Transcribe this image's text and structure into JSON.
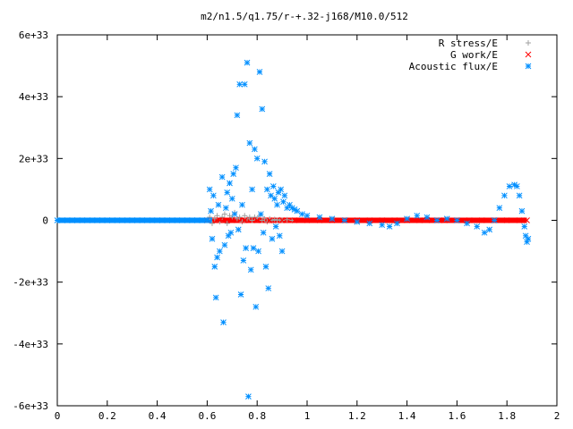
{
  "chart_data": {
    "type": "scatter",
    "title": "m2/n1.5/q1.75/r-+.32-j168/M10.0/512",
    "xlabel": "",
    "ylabel": "",
    "xlim": [
      0,
      2
    ],
    "ylim": [
      -6e+33,
      6e+33
    ],
    "x_ticks": [
      "0",
      "0.2",
      "0.4",
      "0.6",
      "0.8",
      "1",
      "1.2",
      "1.4",
      "1.6",
      "1.8",
      "2"
    ],
    "y_ticks": [
      "-6e+33",
      "-4e+33",
      "-2e+33",
      "0",
      "2e+33",
      "4e+33",
      "6e+33"
    ],
    "grid": false,
    "legend_position": "top-right",
    "series": [
      {
        "name": "R stress/E",
        "marker": "+",
        "color": "#a0a0a0",
        "x": [
          0.6,
          0.61,
          0.62,
          0.63,
          0.64,
          0.65,
          0.66,
          0.67,
          0.68,
          0.69,
          0.7,
          0.71,
          0.72,
          0.73,
          0.74,
          0.75,
          0.76,
          0.77,
          0.78,
          0.79,
          0.8,
          0.81,
          0.82,
          0.83,
          0.84,
          0.85,
          0.86,
          0.87,
          0.88,
          0.89,
          0.9,
          0.92,
          0.94
        ],
        "y": [
          0,
          1e+32,
          -1e+32,
          5e+31,
          1.5e+32,
          -5e+31,
          1e+32,
          2e+32,
          -1e+32,
          1.5e+32,
          1e+32,
          2.5e+32,
          5e+31,
          1e+32,
          -5e+31,
          1.5e+32,
          5e+31,
          1e+32,
          0,
          1e+32,
          5e+31,
          1.5e+32,
          0,
          5e+31,
          -5e+31,
          5e+31,
          0,
          3e+31,
          0,
          2e+31,
          0,
          2e+31,
          0
        ]
      },
      {
        "name": "G work/E",
        "marker": "x",
        "color": "#ff0000",
        "x": [
          0.6,
          0.65,
          0.7,
          0.75,
          0.8,
          0.85,
          0.9,
          0.95,
          1.0,
          1.05,
          1.1,
          1.15,
          1.2,
          1.25,
          1.3,
          1.35,
          1.4,
          1.45,
          1.5,
          1.55,
          1.6,
          1.65,
          1.7,
          1.75,
          1.8,
          1.85,
          1.88
        ],
        "y": [
          0,
          0,
          0,
          0,
          0,
          0,
          0,
          0,
          0,
          0,
          0,
          0,
          0,
          0,
          0,
          0,
          0,
          0,
          0,
          0,
          0,
          0,
          0,
          0,
          0,
          0,
          0
        ]
      },
      {
        "name": "Acoustic flux/E",
        "marker": "*",
        "color": "#008fff",
        "x": [
          0.0,
          0.02,
          0.04,
          0.06,
          0.08,
          0.1,
          0.12,
          0.14,
          0.16,
          0.18,
          0.2,
          0.22,
          0.24,
          0.26,
          0.28,
          0.3,
          0.32,
          0.34,
          0.36,
          0.38,
          0.4,
          0.42,
          0.44,
          0.46,
          0.48,
          0.5,
          0.52,
          0.54,
          0.56,
          0.58,
          0.6,
          0.61,
          0.615,
          0.62,
          0.625,
          0.63,
          0.635,
          0.64,
          0.645,
          0.65,
          0.66,
          0.665,
          0.67,
          0.675,
          0.68,
          0.685,
          0.69,
          0.695,
          0.7,
          0.705,
          0.71,
          0.715,
          0.72,
          0.725,
          0.73,
          0.735,
          0.74,
          0.745,
          0.75,
          0.755,
          0.76,
          0.765,
          0.77,
          0.775,
          0.78,
          0.785,
          0.79,
          0.795,
          0.8,
          0.805,
          0.81,
          0.815,
          0.82,
          0.825,
          0.83,
          0.835,
          0.84,
          0.845,
          0.85,
          0.855,
          0.86,
          0.865,
          0.87,
          0.875,
          0.88,
          0.885,
          0.89,
          0.895,
          0.9,
          0.905,
          0.91,
          0.92,
          0.93,
          0.94,
          0.95,
          0.96,
          0.98,
          1.0,
          1.05,
          1.1,
          1.15,
          1.2,
          1.25,
          1.3,
          1.33,
          1.36,
          1.4,
          1.44,
          1.48,
          1.52,
          1.56,
          1.6,
          1.64,
          1.68,
          1.71,
          1.73,
          1.75,
          1.77,
          1.79,
          1.81,
          1.83,
          1.84,
          1.85,
          1.86,
          1.87,
          1.875,
          1.88,
          1.885
        ],
        "y": [
          0,
          0,
          0,
          0,
          0,
          0,
          0,
          0,
          0,
          0,
          0,
          0,
          0,
          0,
          0,
          0,
          0,
          0,
          0,
          0,
          0,
          0,
          0,
          0,
          0,
          0,
          0,
          0,
          0,
          0,
          0,
          1e+33,
          3e+32,
          -6e+32,
          8e+32,
          -1.5e+33,
          -2.5e+33,
          -1.2e+33,
          5e+32,
          -1e+33,
          1.4e+33,
          -3.3e+33,
          -8e+32,
          4e+32,
          9e+32,
          -5e+32,
          1.2e+33,
          -4e+32,
          7e+32,
          1.5e+33,
          2e+32,
          1.7e+33,
          3.4e+33,
          -3e+32,
          4.4e+33,
          -2.4e+33,
          5e+32,
          -1.3e+33,
          4.4e+33,
          -9e+32,
          5.1e+33,
          -5.7e+33,
          2.5e+33,
          -1.6e+33,
          1e+33,
          -9e+32,
          2.3e+33,
          -2.8e+33,
          2e+33,
          -1e+33,
          4.8e+33,
          2e+32,
          3.6e+33,
          -4e+32,
          1.9e+33,
          -1.5e+33,
          1e+33,
          -2.2e+33,
          1.5e+33,
          8e+32,
          -6e+32,
          1.1e+33,
          7e+32,
          -2e+32,
          5e+32,
          9e+32,
          -5e+32,
          1e+33,
          -1e+33,
          6e+32,
          8e+32,
          4e+32,
          5e+32,
          4e+32,
          3.5e+32,
          3e+32,
          2e+32,
          1.5e+32,
          1e+32,
          5e+31,
          0.0,
          -5e+31,
          -1e+32,
          -1.5e+32,
          -2e+32,
          -1e+32,
          5e+31,
          1.5e+32,
          1e+32,
          0.0,
          5e+31,
          0.0,
          -1e+32,
          -2e+32,
          -4e+32,
          -3e+32,
          0.0,
          4e+32,
          8e+32,
          1.1e+33,
          1.15e+33,
          1.1e+33,
          8e+32,
          3e+32,
          -2e+32,
          -5e+32,
          -7e+32,
          -6e+32
        ]
      }
    ]
  }
}
